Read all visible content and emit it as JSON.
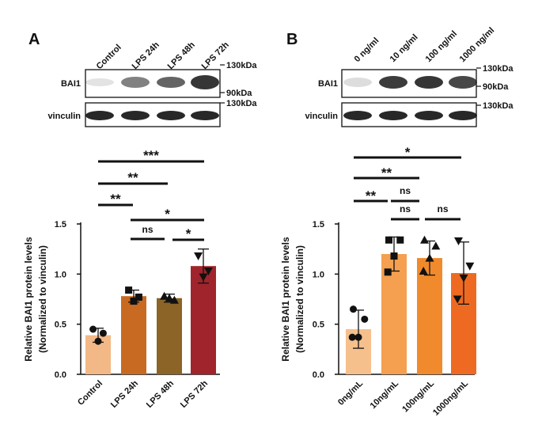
{
  "chart_data": [
    {
      "panel": "A",
      "type": "bar",
      "blot": {
        "lanes": [
          "Control",
          "LPS 24h",
          "LPS 48h",
          "LPS 72h"
        ],
        "rows": [
          "BAI1",
          "vinculin"
        ],
        "markers_top": [
          "130kDa",
          "90kDa"
        ],
        "markers_bottom": [
          "130kDa"
        ]
      },
      "categories": [
        "Control",
        "LPS 24h",
        "LPS 48h",
        "LPS 72h"
      ],
      "values": [
        0.39,
        0.78,
        0.76,
        1.08
      ],
      "errors": [
        0.07,
        0.06,
        0.04,
        0.17
      ],
      "points": [
        [
          0.45,
          0.41,
          0.33
        ],
        [
          0.84,
          0.77,
          0.73
        ],
        [
          0.78,
          0.74,
          0.76
        ],
        [
          1.18,
          1.03,
          0.97
        ]
      ],
      "markers": [
        "circle",
        "square",
        "triangle",
        "triangle-down"
      ],
      "colors": [
        "#F2B886",
        "#C86A22",
        "#8C6428",
        "#A0242B"
      ],
      "ylabel": "Relative BAI1 protein levels",
      "ylabel2": "(Normalized to vinculin)",
      "ylim": [
        0,
        1.5
      ],
      "yticks": [
        "0.0",
        "0.5",
        "1.0",
        "1.5"
      ],
      "significance": [
        {
          "from": 0,
          "to": 3,
          "label": "***"
        },
        {
          "from": 0,
          "to": 2,
          "label": "**"
        },
        {
          "from": 0,
          "to": 1,
          "label": "**"
        },
        {
          "from": 1,
          "to": 3,
          "label": "*"
        },
        {
          "from": 1,
          "to": 2,
          "label": "ns"
        },
        {
          "from": 2,
          "to": 3,
          "label": "*"
        }
      ]
    },
    {
      "panel": "B",
      "type": "bar",
      "blot": {
        "lanes": [
          "0 ng/ml",
          "10 ng/ml",
          "100 ng/ml",
          "1000 ng/ml"
        ],
        "rows": [
          "BAI1",
          "vinculin"
        ],
        "markers_top": [
          "130kDa",
          "90kDa"
        ],
        "markers_bottom": [
          "130kDa"
        ]
      },
      "categories": [
        "0ng/mL",
        "10ng/mL",
        "100ng/mL",
        "1000ng/mL"
      ],
      "values": [
        0.45,
        1.2,
        1.16,
        1.01
      ],
      "errors": [
        0.19,
        0.17,
        0.17,
        0.31
      ],
      "points": [
        [
          0.65,
          0.55,
          0.37,
          0.37
        ],
        [
          1.34,
          1.34,
          1.18,
          1.02
        ],
        [
          1.34,
          1.28,
          1.16,
          1.03
        ],
        [
          1.33,
          1.08,
          0.96,
          0.75
        ]
      ],
      "markers": [
        "circle",
        "square",
        "triangle",
        "triangle-down"
      ],
      "colors": [
        "#F6C08C",
        "#F4A050",
        "#F08A2C",
        "#EE6A22"
      ],
      "ylabel": "Relative BAI1 protein levels",
      "ylabel2": "(Normalized to vinculin)",
      "ylim": [
        0,
        1.5
      ],
      "yticks": [
        "0.0",
        "0.5",
        "1.0",
        "1.5"
      ],
      "significance": [
        {
          "from": 0,
          "to": 3,
          "label": "*"
        },
        {
          "from": 0,
          "to": 2,
          "label": "**"
        },
        {
          "from": 0,
          "to": 1,
          "label": "**"
        },
        {
          "from": 1,
          "to": 2,
          "label": "ns"
        },
        {
          "from": 1,
          "to": 2,
          "label": "ns"
        },
        {
          "from": 2,
          "to": 3,
          "label": "ns"
        }
      ]
    }
  ]
}
